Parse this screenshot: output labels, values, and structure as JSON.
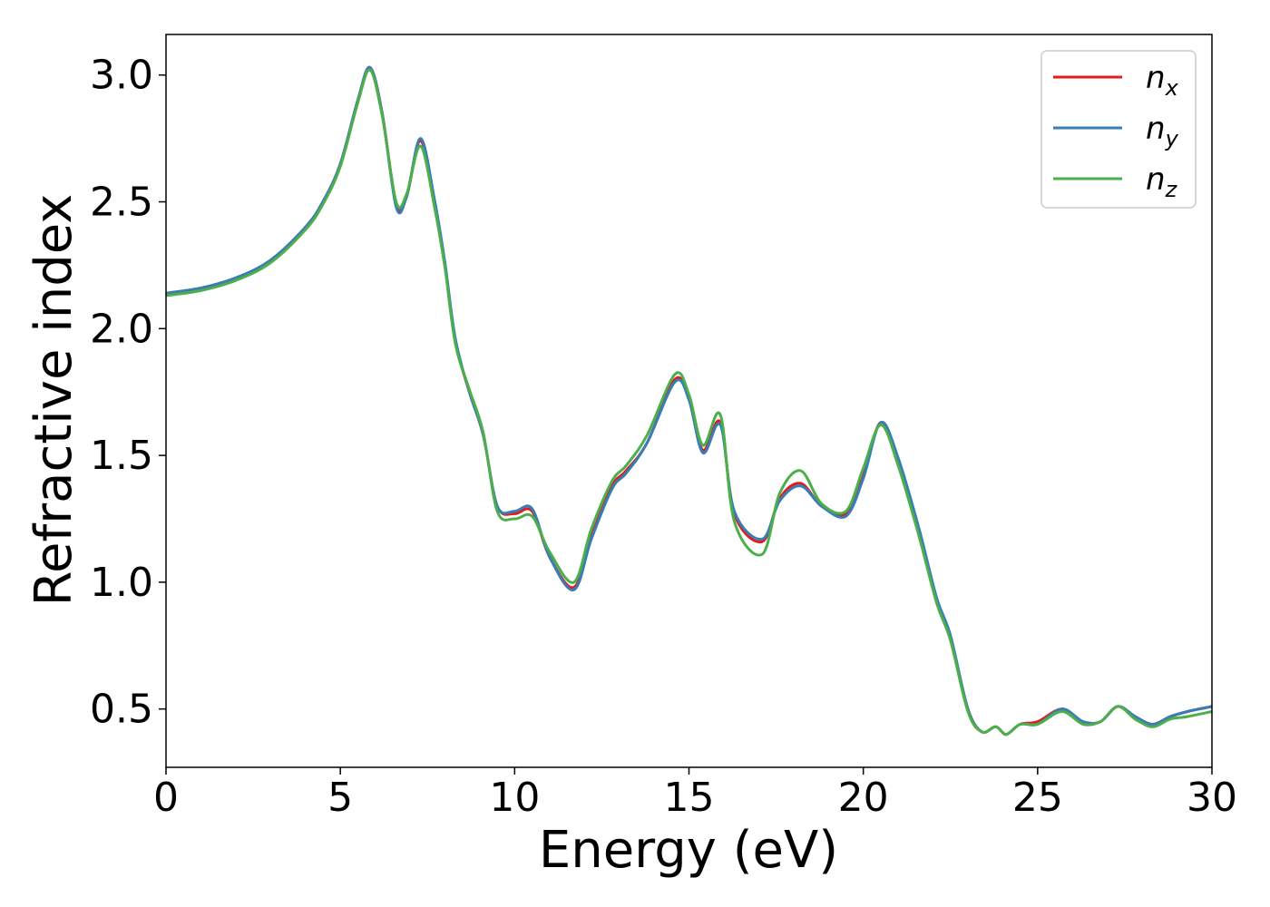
{
  "chart_data": {
    "type": "line",
    "xlabel": "Energy (eV)",
    "ylabel": "Refractive index",
    "xlim": [
      0,
      30
    ],
    "ylim": [
      0.27,
      3.16
    ],
    "xticks": [
      "0",
      "5",
      "10",
      "15",
      "20",
      "25",
      "30"
    ],
    "xtick_values": [
      0,
      5,
      10,
      15,
      20,
      25,
      30
    ],
    "yticks": [
      "0.5",
      "1.0",
      "1.5",
      "2.0",
      "2.5",
      "3.0"
    ],
    "ytick_values": [
      0.5,
      1.0,
      1.5,
      2.0,
      2.5,
      3.0
    ],
    "grid": false,
    "legend_position": "top-right",
    "series": [
      {
        "name": "n",
        "subscript": "x",
        "color": "#e41a1c",
        "x": [
          0,
          1,
          2,
          3,
          4,
          4.5,
          5,
          5.5,
          5.85,
          6.2,
          6.6,
          6.9,
          7.3,
          7.7,
          8.0,
          8.3,
          8.7,
          9.1,
          9.5,
          10.0,
          10.5,
          11.0,
          11.7,
          12.2,
          12.8,
          13.2,
          13.8,
          14.6,
          15.0,
          15.4,
          15.9,
          16.3,
          17.1,
          17.6,
          18.2,
          18.8,
          19.5,
          20.0,
          20.5,
          21.0,
          21.6,
          22.1,
          22.5,
          23.0,
          23.4,
          23.8,
          24.1,
          24.5,
          25.0,
          25.7,
          26.3,
          26.8,
          27.3,
          27.8,
          28.3,
          28.8,
          29.3,
          30.0
        ],
        "y": [
          2.14,
          2.16,
          2.2,
          2.27,
          2.4,
          2.5,
          2.65,
          2.9,
          3.03,
          2.85,
          2.49,
          2.52,
          2.74,
          2.5,
          2.25,
          1.95,
          1.75,
          1.58,
          1.3,
          1.27,
          1.28,
          1.1,
          0.98,
          1.18,
          1.38,
          1.44,
          1.55,
          1.8,
          1.72,
          1.52,
          1.63,
          1.27,
          1.16,
          1.33,
          1.39,
          1.3,
          1.27,
          1.42,
          1.63,
          1.48,
          1.2,
          0.93,
          0.78,
          0.5,
          0.41,
          0.43,
          0.4,
          0.44,
          0.45,
          0.5,
          0.45,
          0.45,
          0.51,
          0.47,
          0.44,
          0.47,
          0.49,
          0.51
        ]
      },
      {
        "name": "n",
        "subscript": "y",
        "color": "#377eb8",
        "x": [
          0,
          1,
          2,
          3,
          4,
          4.5,
          5,
          5.5,
          5.85,
          6.2,
          6.6,
          6.9,
          7.3,
          7.7,
          8.0,
          8.3,
          8.7,
          9.1,
          9.5,
          10.0,
          10.5,
          11.0,
          11.7,
          12.2,
          12.8,
          13.2,
          13.8,
          14.6,
          15.0,
          15.4,
          15.9,
          16.3,
          17.1,
          17.6,
          18.2,
          18.8,
          19.5,
          20.0,
          20.5,
          21.0,
          21.6,
          22.1,
          22.5,
          23.0,
          23.4,
          23.8,
          24.1,
          24.5,
          25.0,
          25.7,
          26.3,
          26.8,
          27.3,
          27.8,
          28.3,
          28.8,
          29.3,
          30.0
        ],
        "y": [
          2.14,
          2.16,
          2.2,
          2.27,
          2.4,
          2.5,
          2.65,
          2.9,
          3.03,
          2.85,
          2.48,
          2.52,
          2.75,
          2.51,
          2.26,
          1.96,
          1.75,
          1.58,
          1.3,
          1.28,
          1.29,
          1.1,
          0.97,
          1.17,
          1.37,
          1.43,
          1.55,
          1.79,
          1.72,
          1.51,
          1.62,
          1.28,
          1.17,
          1.32,
          1.38,
          1.3,
          1.26,
          1.41,
          1.63,
          1.49,
          1.21,
          0.94,
          0.79,
          0.5,
          0.41,
          0.43,
          0.4,
          0.44,
          0.44,
          0.5,
          0.45,
          0.45,
          0.51,
          0.47,
          0.44,
          0.47,
          0.49,
          0.51
        ]
      },
      {
        "name": "n",
        "subscript": "z",
        "color": "#4daf4a",
        "x": [
          0,
          1,
          2,
          3,
          4,
          4.5,
          5,
          5.5,
          5.85,
          6.2,
          6.6,
          6.9,
          7.3,
          7.7,
          8.0,
          8.3,
          8.7,
          9.1,
          9.5,
          10.0,
          10.5,
          11.0,
          11.7,
          12.2,
          12.8,
          13.2,
          13.8,
          14.6,
          15.0,
          15.4,
          15.9,
          16.3,
          17.1,
          17.6,
          18.2,
          18.8,
          19.5,
          20.0,
          20.5,
          21.0,
          21.6,
          22.1,
          22.5,
          23.0,
          23.4,
          23.8,
          24.1,
          24.5,
          25.0,
          25.7,
          26.3,
          26.8,
          27.3,
          27.8,
          28.3,
          28.8,
          29.3,
          30.0
        ],
        "y": [
          2.13,
          2.15,
          2.19,
          2.26,
          2.39,
          2.49,
          2.64,
          2.89,
          3.02,
          2.84,
          2.5,
          2.53,
          2.72,
          2.48,
          2.24,
          1.94,
          1.76,
          1.59,
          1.28,
          1.25,
          1.26,
          1.12,
          1.0,
          1.21,
          1.4,
          1.46,
          1.58,
          1.82,
          1.74,
          1.54,
          1.66,
          1.24,
          1.11,
          1.35,
          1.44,
          1.31,
          1.28,
          1.45,
          1.62,
          1.46,
          1.18,
          0.92,
          0.77,
          0.49,
          0.41,
          0.43,
          0.4,
          0.44,
          0.44,
          0.49,
          0.44,
          0.45,
          0.51,
          0.46,
          0.43,
          0.46,
          0.47,
          0.49
        ]
      }
    ]
  }
}
